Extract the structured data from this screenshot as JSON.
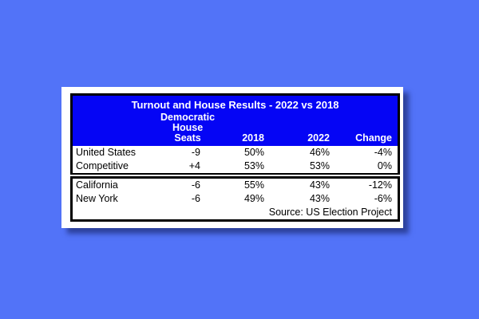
{
  "table": {
    "title": "Turnout and House Results - 2022 vs 2018",
    "columns": {
      "seats": "Democratic\nHouse Seats",
      "y2018": "2018",
      "y2022": "2022",
      "change": "Change"
    },
    "rows_national": [
      {
        "label": "United States",
        "seats": "-9",
        "y2018": "50%",
        "y2022": "46%",
        "change": "-4%"
      },
      {
        "label": "Competitive",
        "seats": "+4",
        "y2018": "53%",
        "y2022": "53%",
        "change": "0%"
      }
    ],
    "rows_states": [
      {
        "label": "California",
        "seats": "-6",
        "y2018": "55%",
        "y2022": "43%",
        "change": "-12%"
      },
      {
        "label": "New York",
        "seats": "-6",
        "y2018": "49%",
        "y2022": "43%",
        "change": "-6%"
      }
    ],
    "source": "Source: US Election Project"
  },
  "colors": {
    "background": "#5273f8",
    "header_blue": "#0505f5",
    "header_text": "#ffffff",
    "body_text": "#000000",
    "card": "#ffffff",
    "border": "#000000"
  },
  "chart_data": {
    "type": "table",
    "title": "Turnout and House Results - 2022 vs 2018",
    "columns": [
      "",
      "Democratic House Seats",
      "2018",
      "2022",
      "Change"
    ],
    "rows": [
      [
        "United States",
        -9,
        "50%",
        "46%",
        "-4%"
      ],
      [
        "Competitive",
        4,
        "53%",
        "53%",
        "0%"
      ],
      [
        "California",
        -6,
        "55%",
        "43%",
        "-12%"
      ],
      [
        "New York",
        -6,
        "49%",
        "43%",
        "-6%"
      ]
    ],
    "source": "Source: US Election Project"
  }
}
